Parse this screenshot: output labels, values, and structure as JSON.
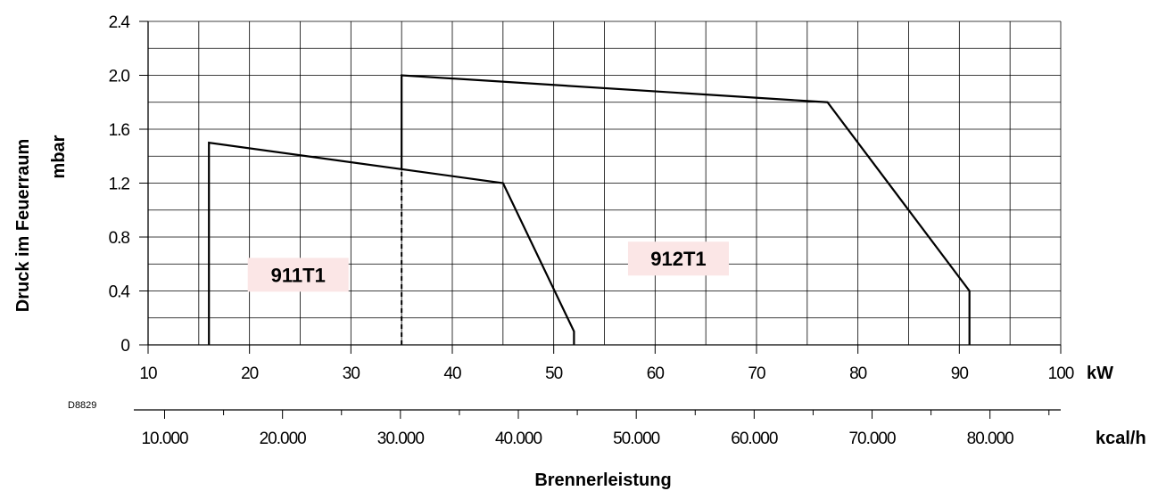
{
  "chart_data": {
    "type": "line",
    "drawing_code": "D8829",
    "xlabel": "Brennerleistung",
    "ylabel": [
      "Druck im Feuerraum",
      "mbar"
    ],
    "x_unit": "kW",
    "x2_unit": "kcal/h",
    "xlim": [
      10,
      100
    ],
    "ylim": [
      0,
      2.4
    ],
    "grid": true,
    "x_ticks": [
      10,
      20,
      30,
      40,
      50,
      60,
      70,
      80,
      90,
      100
    ],
    "x_tick_labels": [
      "10",
      "20",
      "30",
      "40",
      "50",
      "60",
      "70",
      "80",
      "90",
      "100"
    ],
    "y_ticks": [
      0,
      0.4,
      0.8,
      1.2,
      1.6,
      2.0,
      2.4
    ],
    "y_tick_labels": [
      "0",
      "0.4",
      "0.8",
      "1.2",
      "1.6",
      "2.0",
      "2.4"
    ],
    "x2_ticks": [
      10000,
      20000,
      30000,
      40000,
      50000,
      60000,
      70000,
      80000
    ],
    "x2_tick_labels": [
      "10.000",
      "20.000",
      "30.000",
      "40.000",
      "50.000",
      "60.000",
      "70.000",
      "80.000"
    ],
    "series": [
      {
        "name": "911T1",
        "x": [
          16,
          16,
          45,
          52,
          52
        ],
        "y": [
          0,
          1.5,
          1.2,
          0.1,
          0
        ]
      },
      {
        "name": "912T1",
        "x": [
          35,
          35,
          77,
          91,
          91
        ],
        "y": [
          1.3,
          2.0,
          1.8,
          0.4,
          0
        ]
      }
    ],
    "divider": {
      "x": 35,
      "y": [
        0,
        1.3
      ],
      "style": "dashed"
    },
    "label_bg_color": "#fbe6e6",
    "line_color": "#000000",
    "grid_color": "#000000"
  }
}
